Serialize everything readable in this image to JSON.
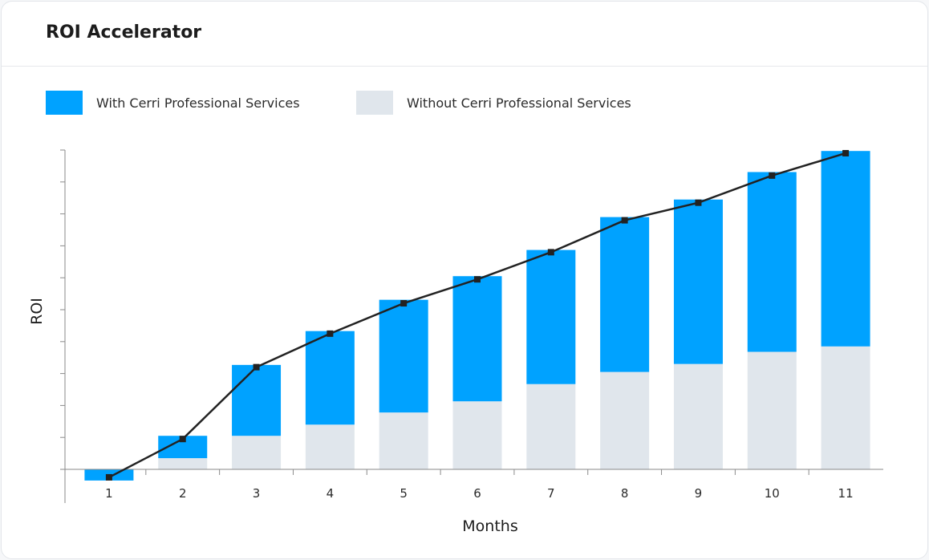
{
  "card": {
    "title": "ROI Accelerator"
  },
  "colors": {
    "with": "#00a2ff",
    "without": "#e0e6ec",
    "line": "#222222",
    "axis": "#8a8a8a"
  },
  "chart_data": {
    "type": "bar",
    "stacked": true,
    "title": "ROI Accelerator",
    "xlabel": "Months",
    "ylabel": "ROI",
    "categories": [
      "1",
      "2",
      "3",
      "4",
      "5",
      "6",
      "7",
      "8",
      "9",
      "10",
      "11"
    ],
    "ylim": [
      -1,
      10
    ],
    "y_ticks_labeled": false,
    "series": [
      {
        "name": "Without Cerri Professional Services",
        "color": "#e0e6ec",
        "values": [
          0,
          0.35,
          1.05,
          1.4,
          1.78,
          2.13,
          2.67,
          3.05,
          3.3,
          3.68,
          3.85
        ]
      },
      {
        "name": "With Cerri Professional Services",
        "color": "#00a2ff",
        "values": [
          -0.35,
          0.7,
          2.22,
          2.93,
          3.53,
          3.92,
          4.2,
          4.85,
          5.15,
          5.63,
          6.12
        ]
      }
    ],
    "line": {
      "values": [
        -0.25,
        0.95,
        3.2,
        4.25,
        5.2,
        5.95,
        6.8,
        7.8,
        8.35,
        9.2,
        9.9
      ]
    },
    "legend_position": "top-left",
    "grid": false
  }
}
